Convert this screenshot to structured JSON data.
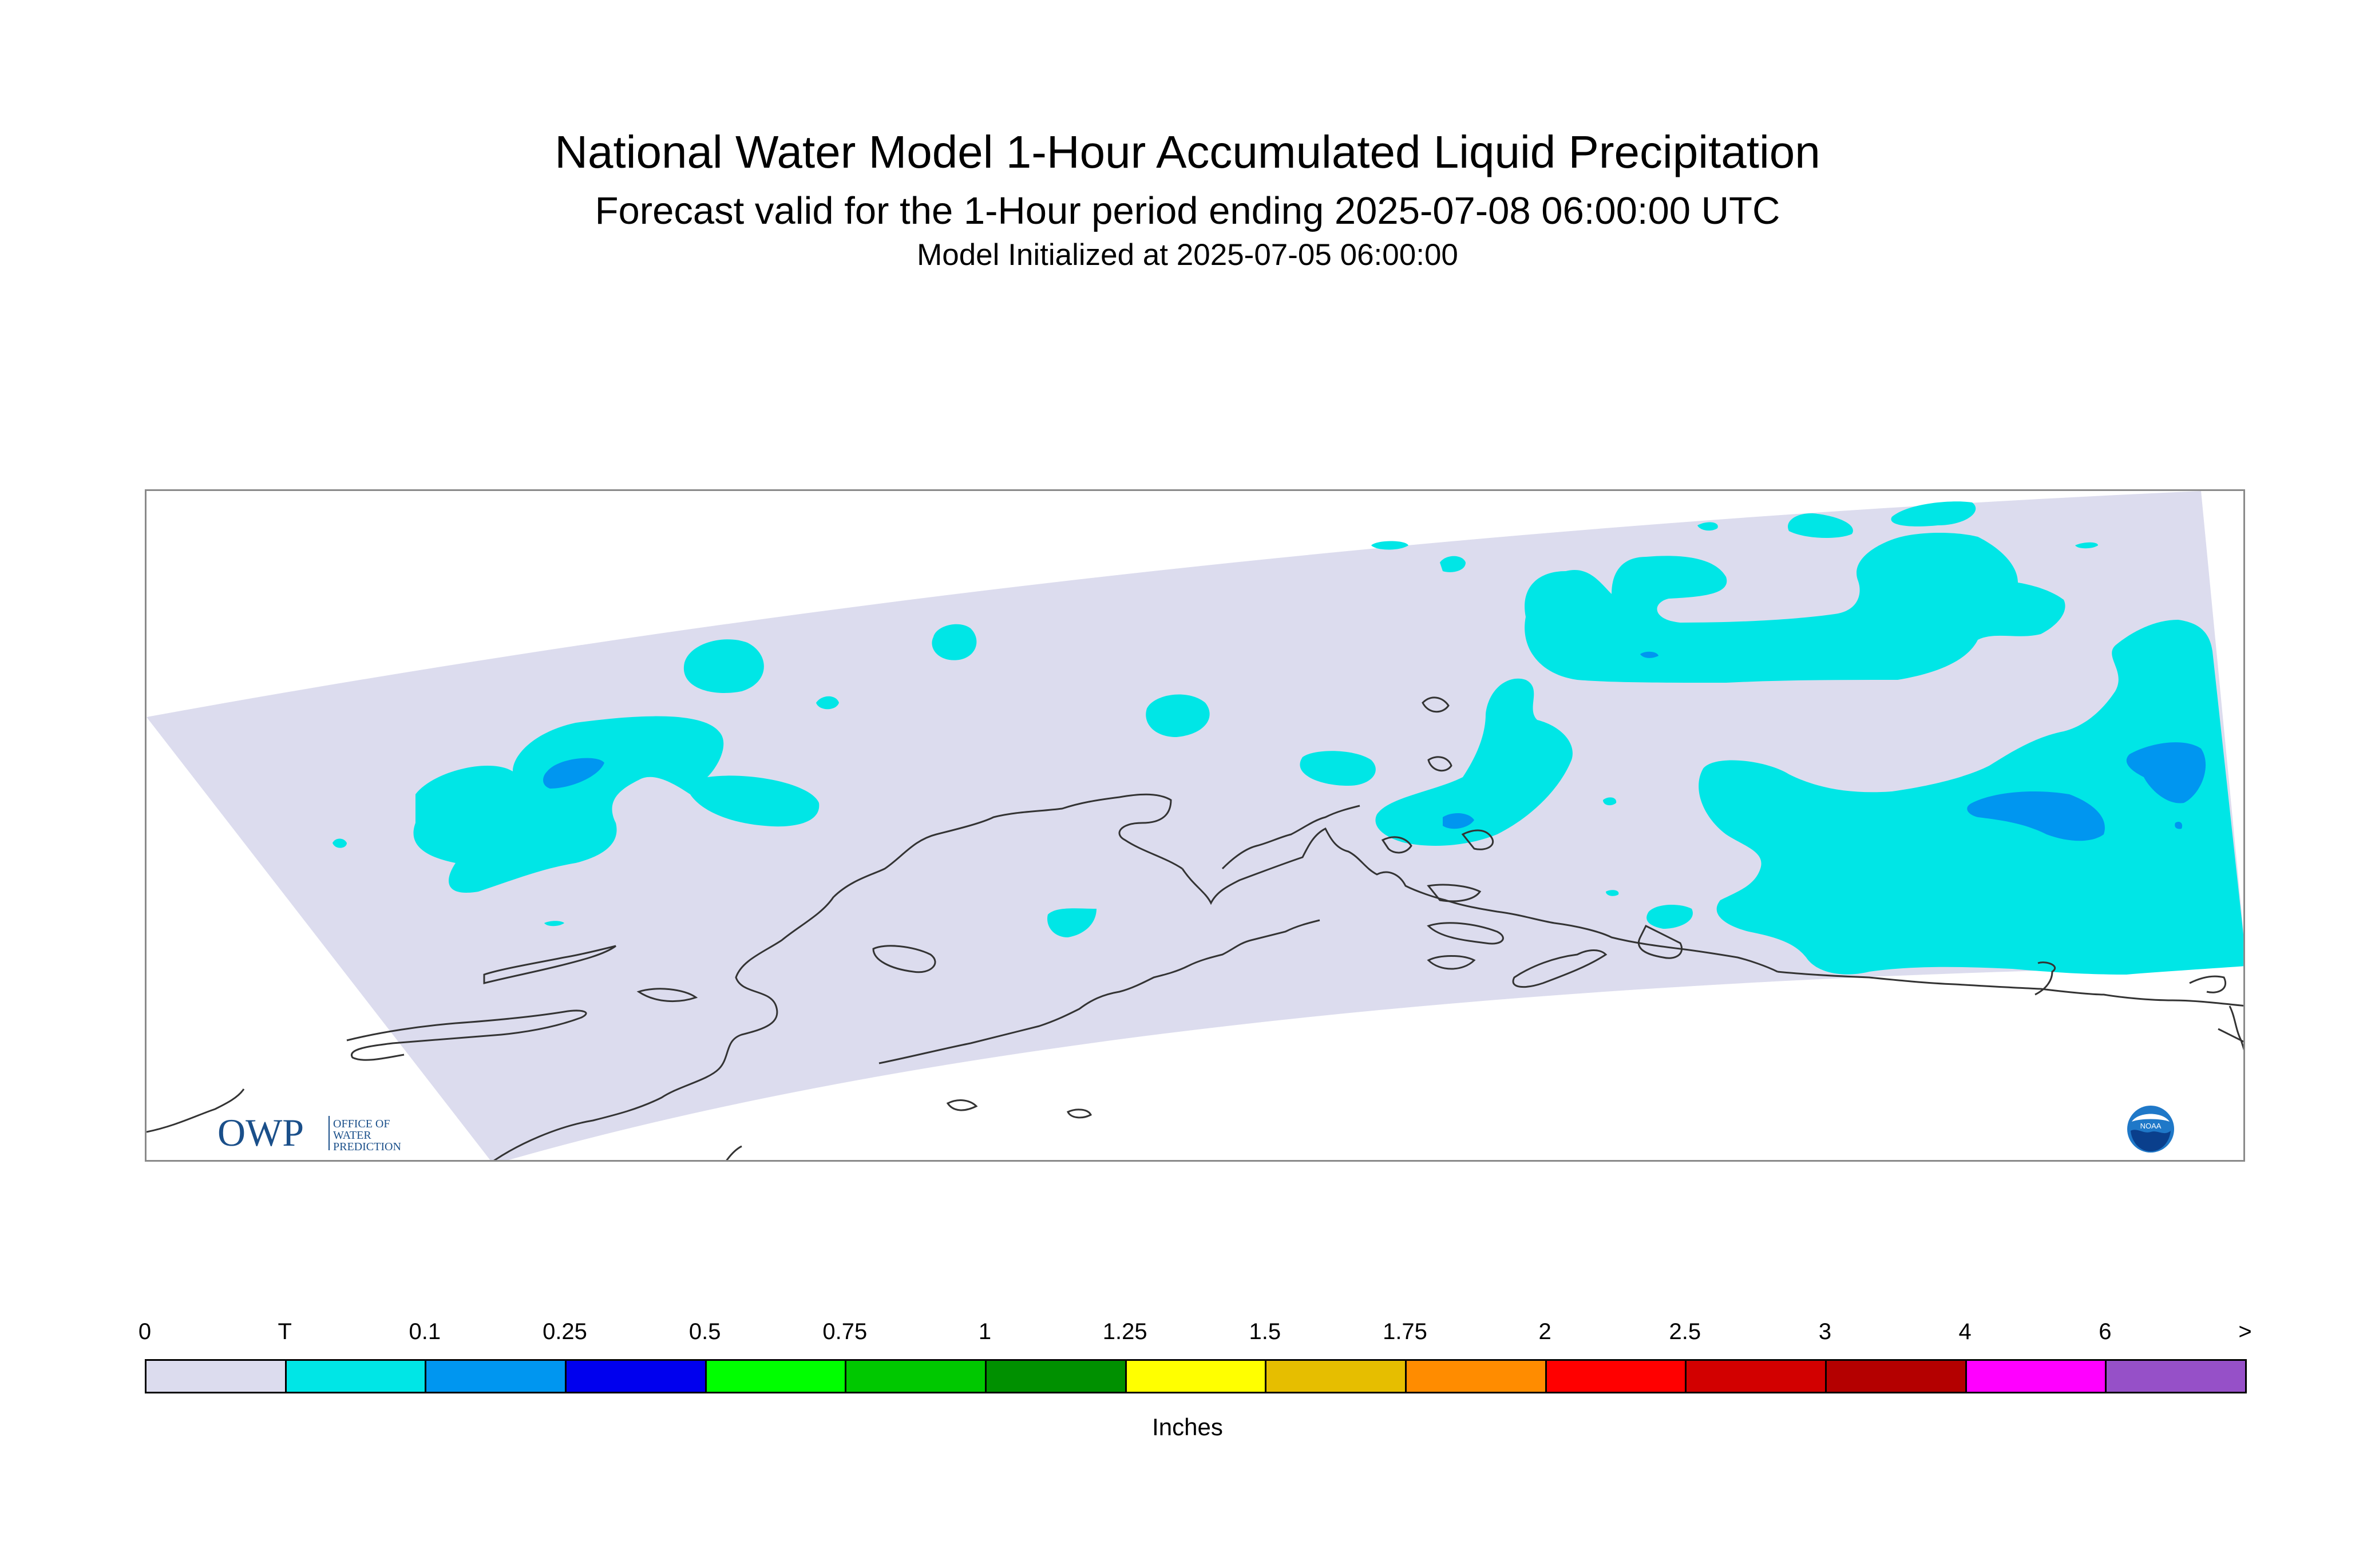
{
  "title": "National Water Model 1-Hour Accumulated Liquid Precipitation",
  "subtitle": "Forecast valid for the 1-Hour period ending 2025-07-08 06:00:00 UTC",
  "init_text": "Model Initialized at 2025-07-05 06:00:00",
  "units": "Inches",
  "logos": {
    "owp_big": "OWP",
    "owp_small_1": "OFFICE OF",
    "owp_small_2": "WATER",
    "owp_small_3": "PREDICTION",
    "noaa": "NOAA"
  },
  "legend": {
    "ticks": [
      "0",
      "T",
      "0.1",
      "0.25",
      "0.5",
      "0.75",
      "1",
      "1.25",
      "1.5",
      "1.75",
      "2",
      "2.5",
      "3",
      "4",
      "6",
      ">"
    ],
    "colors": [
      "#dcdcee",
      "#00e6e6",
      "#0096f0",
      "#0000ee",
      "#00ff00",
      "#00c800",
      "#009000",
      "#ffff00",
      "#e6be00",
      "#ff8c00",
      "#ff0000",
      "#d20000",
      "#b40000",
      "#ff00ff",
      "#9650c8"
    ]
  },
  "colors": {
    "domain_fill": "#dcdcee",
    "trace": "#00e6e6",
    "light": "#0096f0",
    "coast": "#333333"
  }
}
